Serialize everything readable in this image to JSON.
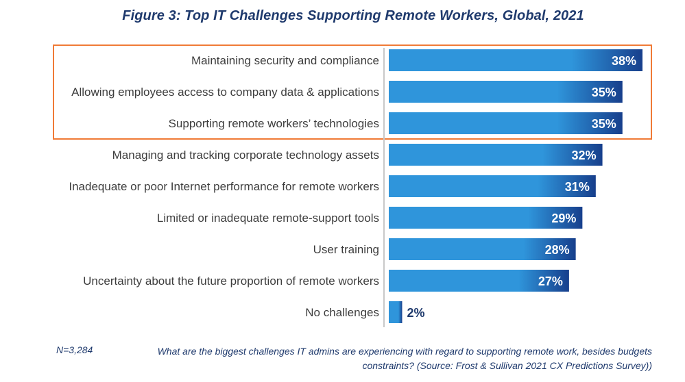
{
  "chart_data": {
    "type": "bar",
    "orientation": "horizontal",
    "title": "Figure 3: Top IT Challenges Supporting Remote Workers, Global, 2021",
    "categories": [
      "Maintaining security and compliance",
      "Allowing employees access to company data & applications",
      "Supporting remote workers’ technologies",
      "Managing and tracking corporate technology assets",
      "Inadequate or poor Internet performance for remote workers",
      "Limited or inadequate remote-support tools",
      "User training",
      "Uncertainty about the future proportion of remote workers",
      "No challenges"
    ],
    "values": [
      38,
      35,
      35,
      32,
      31,
      29,
      28,
      27,
      2
    ],
    "value_labels": [
      "38%",
      "35%",
      "35%",
      "32%",
      "31%",
      "29%",
      "28%",
      "27%",
      "2%"
    ],
    "unit": "%",
    "xlim": [
      0,
      38
    ],
    "highlighted_count": 3,
    "xlabel": "",
    "ylabel": ""
  },
  "colors": {
    "bar_light": "#2f95db",
    "bar_dark": "#173f8c",
    "highlight_border": "#f07a36",
    "text_label": "#3d3d3d",
    "text_value_light": "#ffffff",
    "text_value_dark": "#1f3a6d",
    "axis": "#c8c8c8"
  },
  "footer": {
    "sample_size": "N=3,284",
    "note": "What are the biggest challenges IT admins are experiencing with regard to supporting remote work, besides budgets constraints? (Source: Frost & Sullivan 2021 CX Predictions Survey))"
  }
}
